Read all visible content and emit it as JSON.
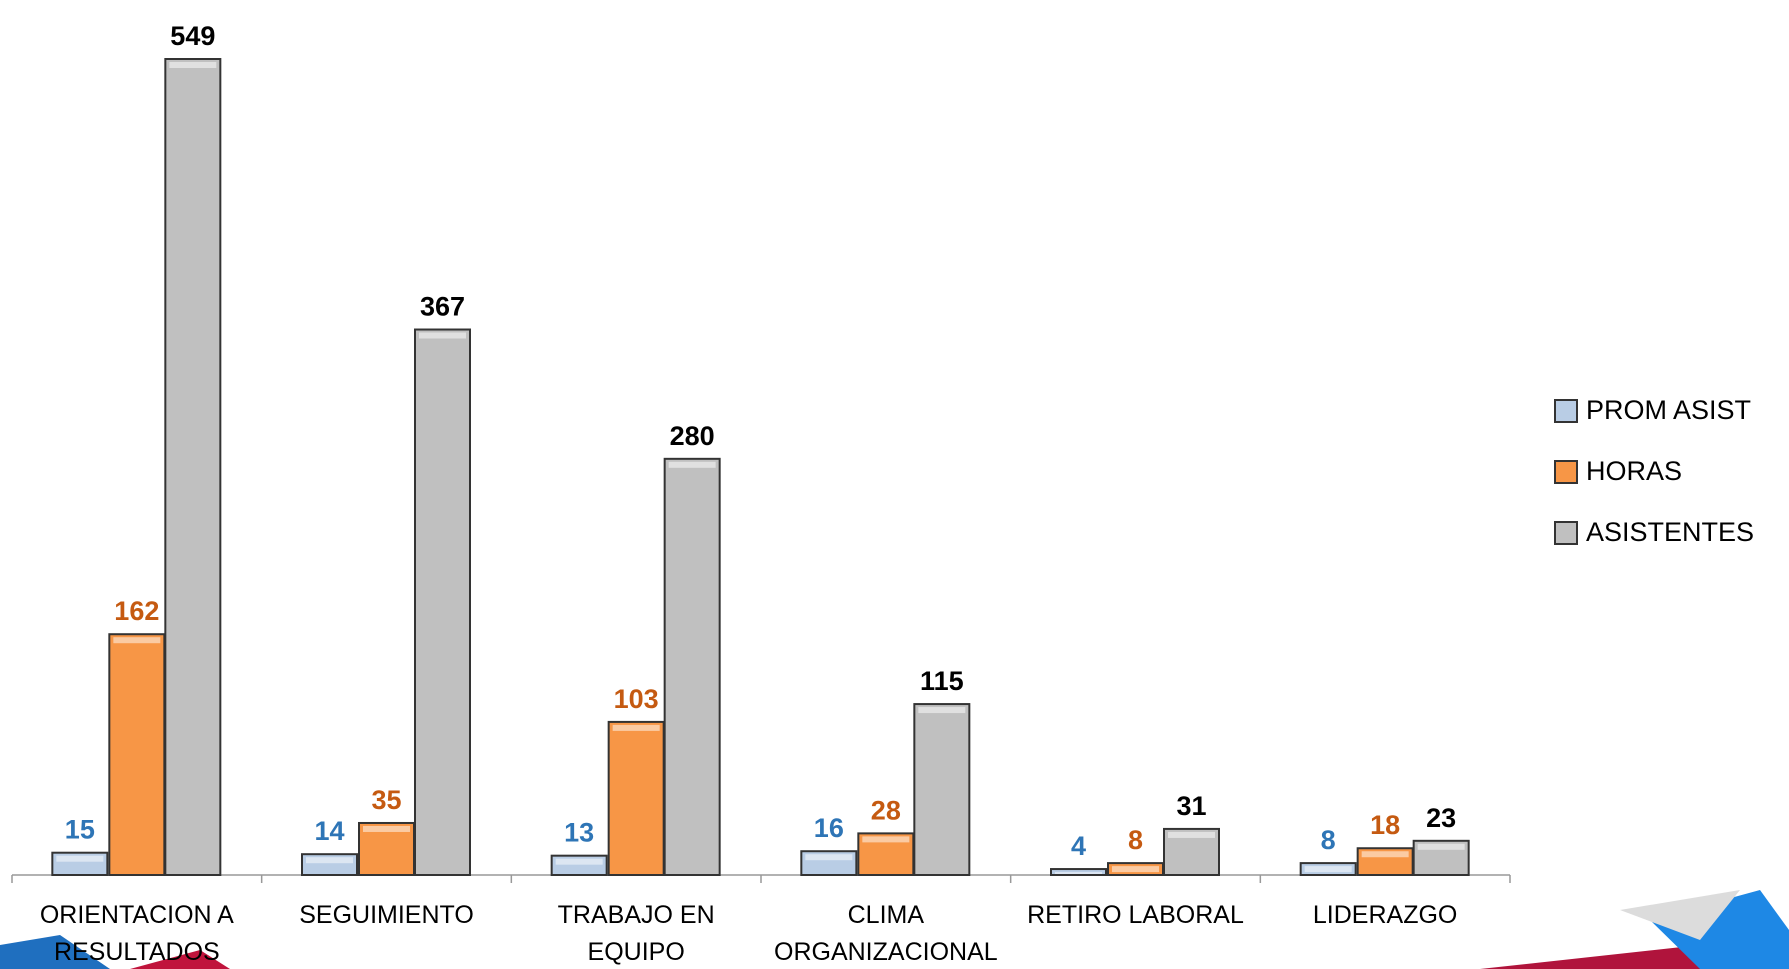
{
  "chart_data": {
    "type": "bar",
    "categories": [
      "ORIENTACION A RESULTADOS",
      "SEGUIMIENTO",
      "TRABAJO EN EQUIPO",
      "CLIMA ORGANIZACIONAL",
      "RETIRO LABORAL",
      "LIDERAZGO"
    ],
    "series": [
      {
        "name": "PROM ASIST",
        "color": "#b9cde5",
        "label_color": "#2e75b6",
        "values": [
          15,
          14,
          13,
          16,
          4,
          8
        ]
      },
      {
        "name": "HORAS",
        "color": "#f79646",
        "label_color": "#c55a11",
        "values": [
          162,
          35,
          103,
          28,
          8,
          18
        ]
      },
      {
        "name": "ASISTENTES",
        "color": "#c0c0c0",
        "label_color": "#000000",
        "values": [
          549,
          367,
          280,
          115,
          31,
          23
        ]
      }
    ],
    "legend": "right"
  }
}
